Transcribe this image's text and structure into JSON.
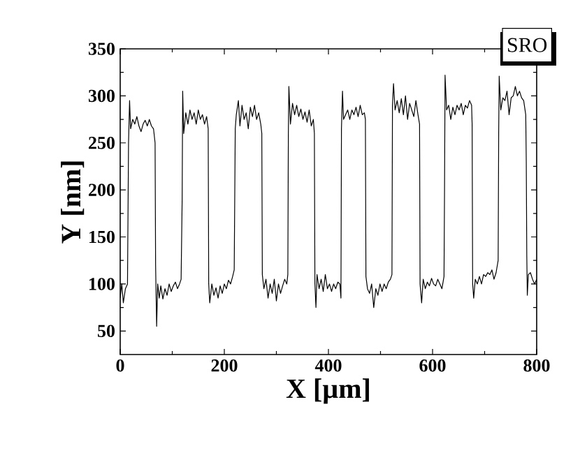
{
  "chart_data": {
    "type": "line",
    "xlabel": "X  [µm]",
    "ylabel": "Y [nm]",
    "annotations": [
      "SRO"
    ],
    "xlim": [
      0,
      800
    ],
    "ylim": [
      25,
      350
    ],
    "xticks": [
      0,
      200,
      400,
      600,
      800
    ],
    "yticks": [
      50,
      100,
      150,
      200,
      250,
      300,
      350
    ],
    "marker": "none",
    "line_style": "solid",
    "series": [
      {
        "color": "#000000",
        "x": [
          0,
          3,
          6,
          10,
          14,
          16,
          18,
          20,
          24,
          28,
          32,
          36,
          40,
          44,
          48,
          52,
          56,
          60,
          64,
          67,
          68,
          70,
          72,
          75,
          78,
          82,
          86,
          90,
          94,
          98,
          102,
          106,
          110,
          114,
          117,
          119,
          120,
          122,
          126,
          130,
          134,
          138,
          142,
          146,
          150,
          154,
          158,
          162,
          166,
          169,
          170,
          172,
          176,
          180,
          184,
          188,
          192,
          196,
          200,
          204,
          208,
          212,
          216,
          219,
          221,
          223,
          227,
          230,
          234,
          238,
          242,
          246,
          250,
          254,
          258,
          262,
          266,
          270,
          272,
          273,
          276,
          280,
          284,
          288,
          292,
          296,
          300,
          304,
          308,
          312,
          316,
          320,
          322,
          323,
          324,
          327,
          331,
          335,
          339,
          343,
          347,
          351,
          355,
          359,
          363,
          367,
          371,
          373,
          374,
          376,
          378,
          382,
          386,
          390,
          394,
          398,
          402,
          406,
          410,
          414,
          418,
          422,
          424,
          425,
          427,
          429,
          433,
          437,
          441,
          445,
          449,
          453,
          457,
          461,
          465,
          469,
          471,
          472,
          475,
          479,
          483,
          487,
          491,
          495,
          499,
          503,
          507,
          511,
          515,
          519,
          522,
          523,
          525,
          528,
          532,
          536,
          540,
          544,
          548,
          552,
          556,
          560,
          564,
          568,
          572,
          575,
          576,
          579,
          582,
          586,
          590,
          594,
          598,
          602,
          606,
          610,
          614,
          618,
          622,
          623,
          624,
          627,
          631,
          635,
          639,
          643,
          647,
          651,
          655,
          659,
          663,
          667,
          671,
          675,
          676,
          677,
          679,
          682,
          686,
          690,
          694,
          698,
          702,
          706,
          710,
          714,
          718,
          722,
          726,
          727,
          728,
          731,
          735,
          739,
          743,
          747,
          751,
          755,
          759,
          763,
          767,
          771,
          775,
          779,
          780,
          781,
          782,
          784,
          788,
          792,
          796,
          800
        ],
        "values": [
          85,
          100,
          80,
          95,
          100,
          250,
          295,
          265,
          275,
          270,
          278,
          268,
          262,
          270,
          274,
          268,
          275,
          268,
          265,
          250,
          120,
          55,
          100,
          85,
          98,
          84,
          95,
          88,
          100,
          92,
          98,
          102,
          95,
          100,
          105,
          190,
          305,
          260,
          282,
          270,
          285,
          275,
          282,
          270,
          285,
          275,
          280,
          270,
          278,
          265,
          100,
          80,
          100,
          88,
          96,
          85,
          98,
          90,
          100,
          95,
          104,
          100,
          108,
          115,
          265,
          280,
          295,
          268,
          290,
          275,
          282,
          265,
          288,
          278,
          290,
          275,
          282,
          270,
          260,
          110,
          95,
          105,
          85,
          100,
          90,
          105,
          82,
          100,
          90,
          98,
          105,
          100,
          110,
          260,
          310,
          270,
          292,
          280,
          290,
          278,
          286,
          275,
          283,
          272,
          285,
          268,
          275,
          260,
          100,
          75,
          110,
          95,
          105,
          92,
          110,
          95,
          100,
          92,
          100,
          95,
          102,
          100,
          85,
          265,
          305,
          275,
          280,
          285,
          275,
          285,
          280,
          288,
          278,
          290,
          280,
          282,
          275,
          108,
          95,
          90,
          100,
          75,
          95,
          88,
          100,
          92,
          100,
          95,
          102,
          105,
          110,
          290,
          313,
          285,
          295,
          282,
          297,
          280,
          300,
          275,
          292,
          285,
          278,
          295,
          280,
          270,
          100,
          80,
          105,
          95,
          102,
          98,
          106,
          100,
          98,
          105,
          100,
          95,
          108,
          200,
          322,
          285,
          290,
          275,
          288,
          280,
          290,
          285,
          292,
          280,
          290,
          287,
          295,
          290,
          270,
          100,
          85,
          105,
          100,
          108,
          100,
          110,
          108,
          112,
          110,
          115,
          105,
          112,
          125,
          260,
          321,
          285,
          298,
          295,
          305,
          280,
          298,
          300,
          310,
          300,
          305,
          298,
          295,
          280,
          230,
          130,
          88,
          110,
          112,
          105,
          100,
          105
        ]
      }
    ]
  }
}
